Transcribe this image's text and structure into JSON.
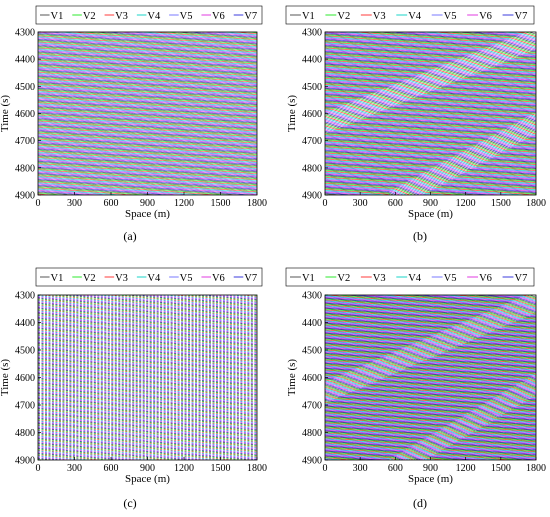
{
  "figure": {
    "legend_labels": [
      "V1",
      "V2",
      "V3",
      "V4",
      "V5",
      "V6",
      "V7"
    ],
    "series_colors": [
      "#555555",
      "#2ee82e",
      "#ff3b3b",
      "#1ad6c9",
      "#7a7aff",
      "#e23be2",
      "#3b3bdd"
    ]
  },
  "chart_data": [
    {
      "type": "line",
      "panel_label": "(a)",
      "title": "",
      "xlabel": "Space (m)",
      "ylabel": "Time (s)",
      "xlim": [
        0,
        1800
      ],
      "ylim": [
        4300,
        4900
      ],
      "y_reversed": true,
      "x_ticks": [
        0,
        300,
        600,
        900,
        1200,
        1500,
        1800
      ],
      "y_ticks": [
        4300,
        4400,
        4500,
        4600,
        4700,
        4800,
        4900
      ],
      "legend": "top",
      "series": [
        {
          "name": "V1"
        },
        {
          "name": "V2"
        },
        {
          "name": "V3"
        },
        {
          "name": "V4"
        },
        {
          "name": "V5"
        },
        {
          "name": "V6"
        },
        {
          "name": "V7"
        }
      ],
      "pattern": "free-flow",
      "trajectory_slope_s_per_m": 0.0333,
      "vehicle_headway_s": 3.2
    },
    {
      "type": "line",
      "panel_label": "(b)",
      "title": "",
      "xlabel": "Space (m)",
      "ylabel": "Time (s)",
      "xlim": [
        0,
        1800
      ],
      "ylim": [
        4300,
        4900
      ],
      "y_reversed": true,
      "x_ticks": [
        0,
        300,
        600,
        900,
        1200,
        1500,
        1800
      ],
      "y_ticks": [
        4300,
        4400,
        4500,
        4600,
        4700,
        4800,
        4900
      ],
      "legend": "top",
      "series": [
        {
          "name": "V1"
        },
        {
          "name": "V2"
        },
        {
          "name": "V3"
        },
        {
          "name": "V4"
        },
        {
          "name": "V5"
        },
        {
          "name": "V6"
        },
        {
          "name": "V7"
        }
      ],
      "pattern": "stop-and-go",
      "trajectory_slope_s_per_m": 0.0333,
      "vehicle_headway_s": 3.2,
      "waves": [
        {
          "x_start": 0,
          "t_start": 4610,
          "x_end": 1800,
          "t_end": 4300
        },
        {
          "x_start": 600,
          "t_start": 4890,
          "x_end": 1800,
          "t_end": 4610
        }
      ]
    },
    {
      "type": "line",
      "panel_label": "(c)",
      "title": "",
      "xlabel": "Space (m)",
      "ylabel": "Time (s)",
      "xlim": [
        0,
        1800
      ],
      "ylim": [
        4300,
        4900
      ],
      "y_reversed": true,
      "x_ticks": [
        0,
        300,
        600,
        900,
        1200,
        1500,
        1800
      ],
      "y_ticks": [
        4300,
        4400,
        4500,
        4600,
        4700,
        4800,
        4900
      ],
      "legend": "top",
      "series": [
        {
          "name": "V1"
        },
        {
          "name": "V2"
        },
        {
          "name": "V3"
        },
        {
          "name": "V4"
        },
        {
          "name": "V5"
        },
        {
          "name": "V6"
        },
        {
          "name": "V7"
        }
      ],
      "pattern": "free-flow",
      "trajectory_slope_s_per_m": 0.0333,
      "vehicle_headway_s": 2.6
    },
    {
      "type": "line",
      "panel_label": "(d)",
      "title": "",
      "xlabel": "Space (m)",
      "ylabel": "Time (s)",
      "xlim": [
        0,
        1800
      ],
      "ylim": [
        4300,
        4900
      ],
      "y_reversed": true,
      "x_ticks": [
        0,
        300,
        600,
        900,
        1200,
        1500,
        1800
      ],
      "y_ticks": [
        4300,
        4400,
        4500,
        4600,
        4700,
        4800,
        4900
      ],
      "legend": "top",
      "series": [
        {
          "name": "V1"
        },
        {
          "name": "V2"
        },
        {
          "name": "V3"
        },
        {
          "name": "V4"
        },
        {
          "name": "V5"
        },
        {
          "name": "V6"
        },
        {
          "name": "V7"
        }
      ],
      "pattern": "stop-and-go",
      "trajectory_slope_s_per_m": 0.0333,
      "vehicle_headway_s": 2.6,
      "waves": [
        {
          "x_start": 0,
          "t_start": 4630,
          "x_end": 1800,
          "t_end": 4300
        },
        {
          "x_start": 600,
          "t_start": 4900,
          "x_end": 1800,
          "t_end": 4600
        }
      ]
    }
  ]
}
